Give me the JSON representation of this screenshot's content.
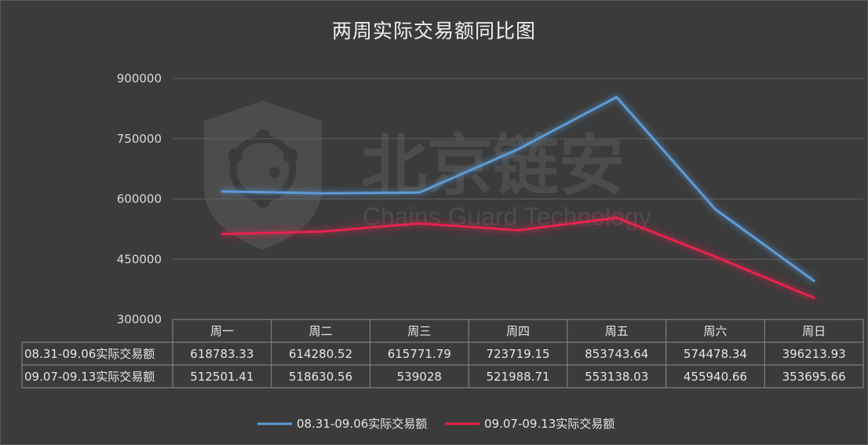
{
  "chart_data": {
    "type": "line",
    "title": "两周实际交易额同比图",
    "categories": [
      "周一",
      "周二",
      "周三",
      "周四",
      "周五",
      "周六",
      "周日"
    ],
    "ylim": [
      300000,
      900000
    ],
    "yticks": [
      "300000",
      "450000",
      "600000",
      "750000",
      "900000"
    ],
    "grid": true,
    "legend_position": "bottom",
    "series": [
      {
        "name": "08.31-09.06实际交易额",
        "color": "#5b9bd5",
        "values": [
          618783.33,
          614280.52,
          615771.79,
          723719.15,
          853743.64,
          574478.34,
          396213.93
        ],
        "labels": [
          "618783.33",
          "614280.52",
          "615771.79",
          "723719.15",
          "853743.64",
          "574478.34",
          "396213.93"
        ]
      },
      {
        "name": "09.07-09.13实际交易额",
        "color": "#e8204f",
        "values": [
          512501.41,
          518630.56,
          539028,
          521988.71,
          553138.03,
          455940.66,
          353695.66
        ],
        "labels": [
          "512501.41",
          "518630.56",
          "539028",
          "521988.71",
          "553138.03",
          "455940.66",
          "353695.66"
        ]
      }
    ]
  },
  "watermark": {
    "cn": "北京链安",
    "en": "Chains Guard Technology"
  }
}
